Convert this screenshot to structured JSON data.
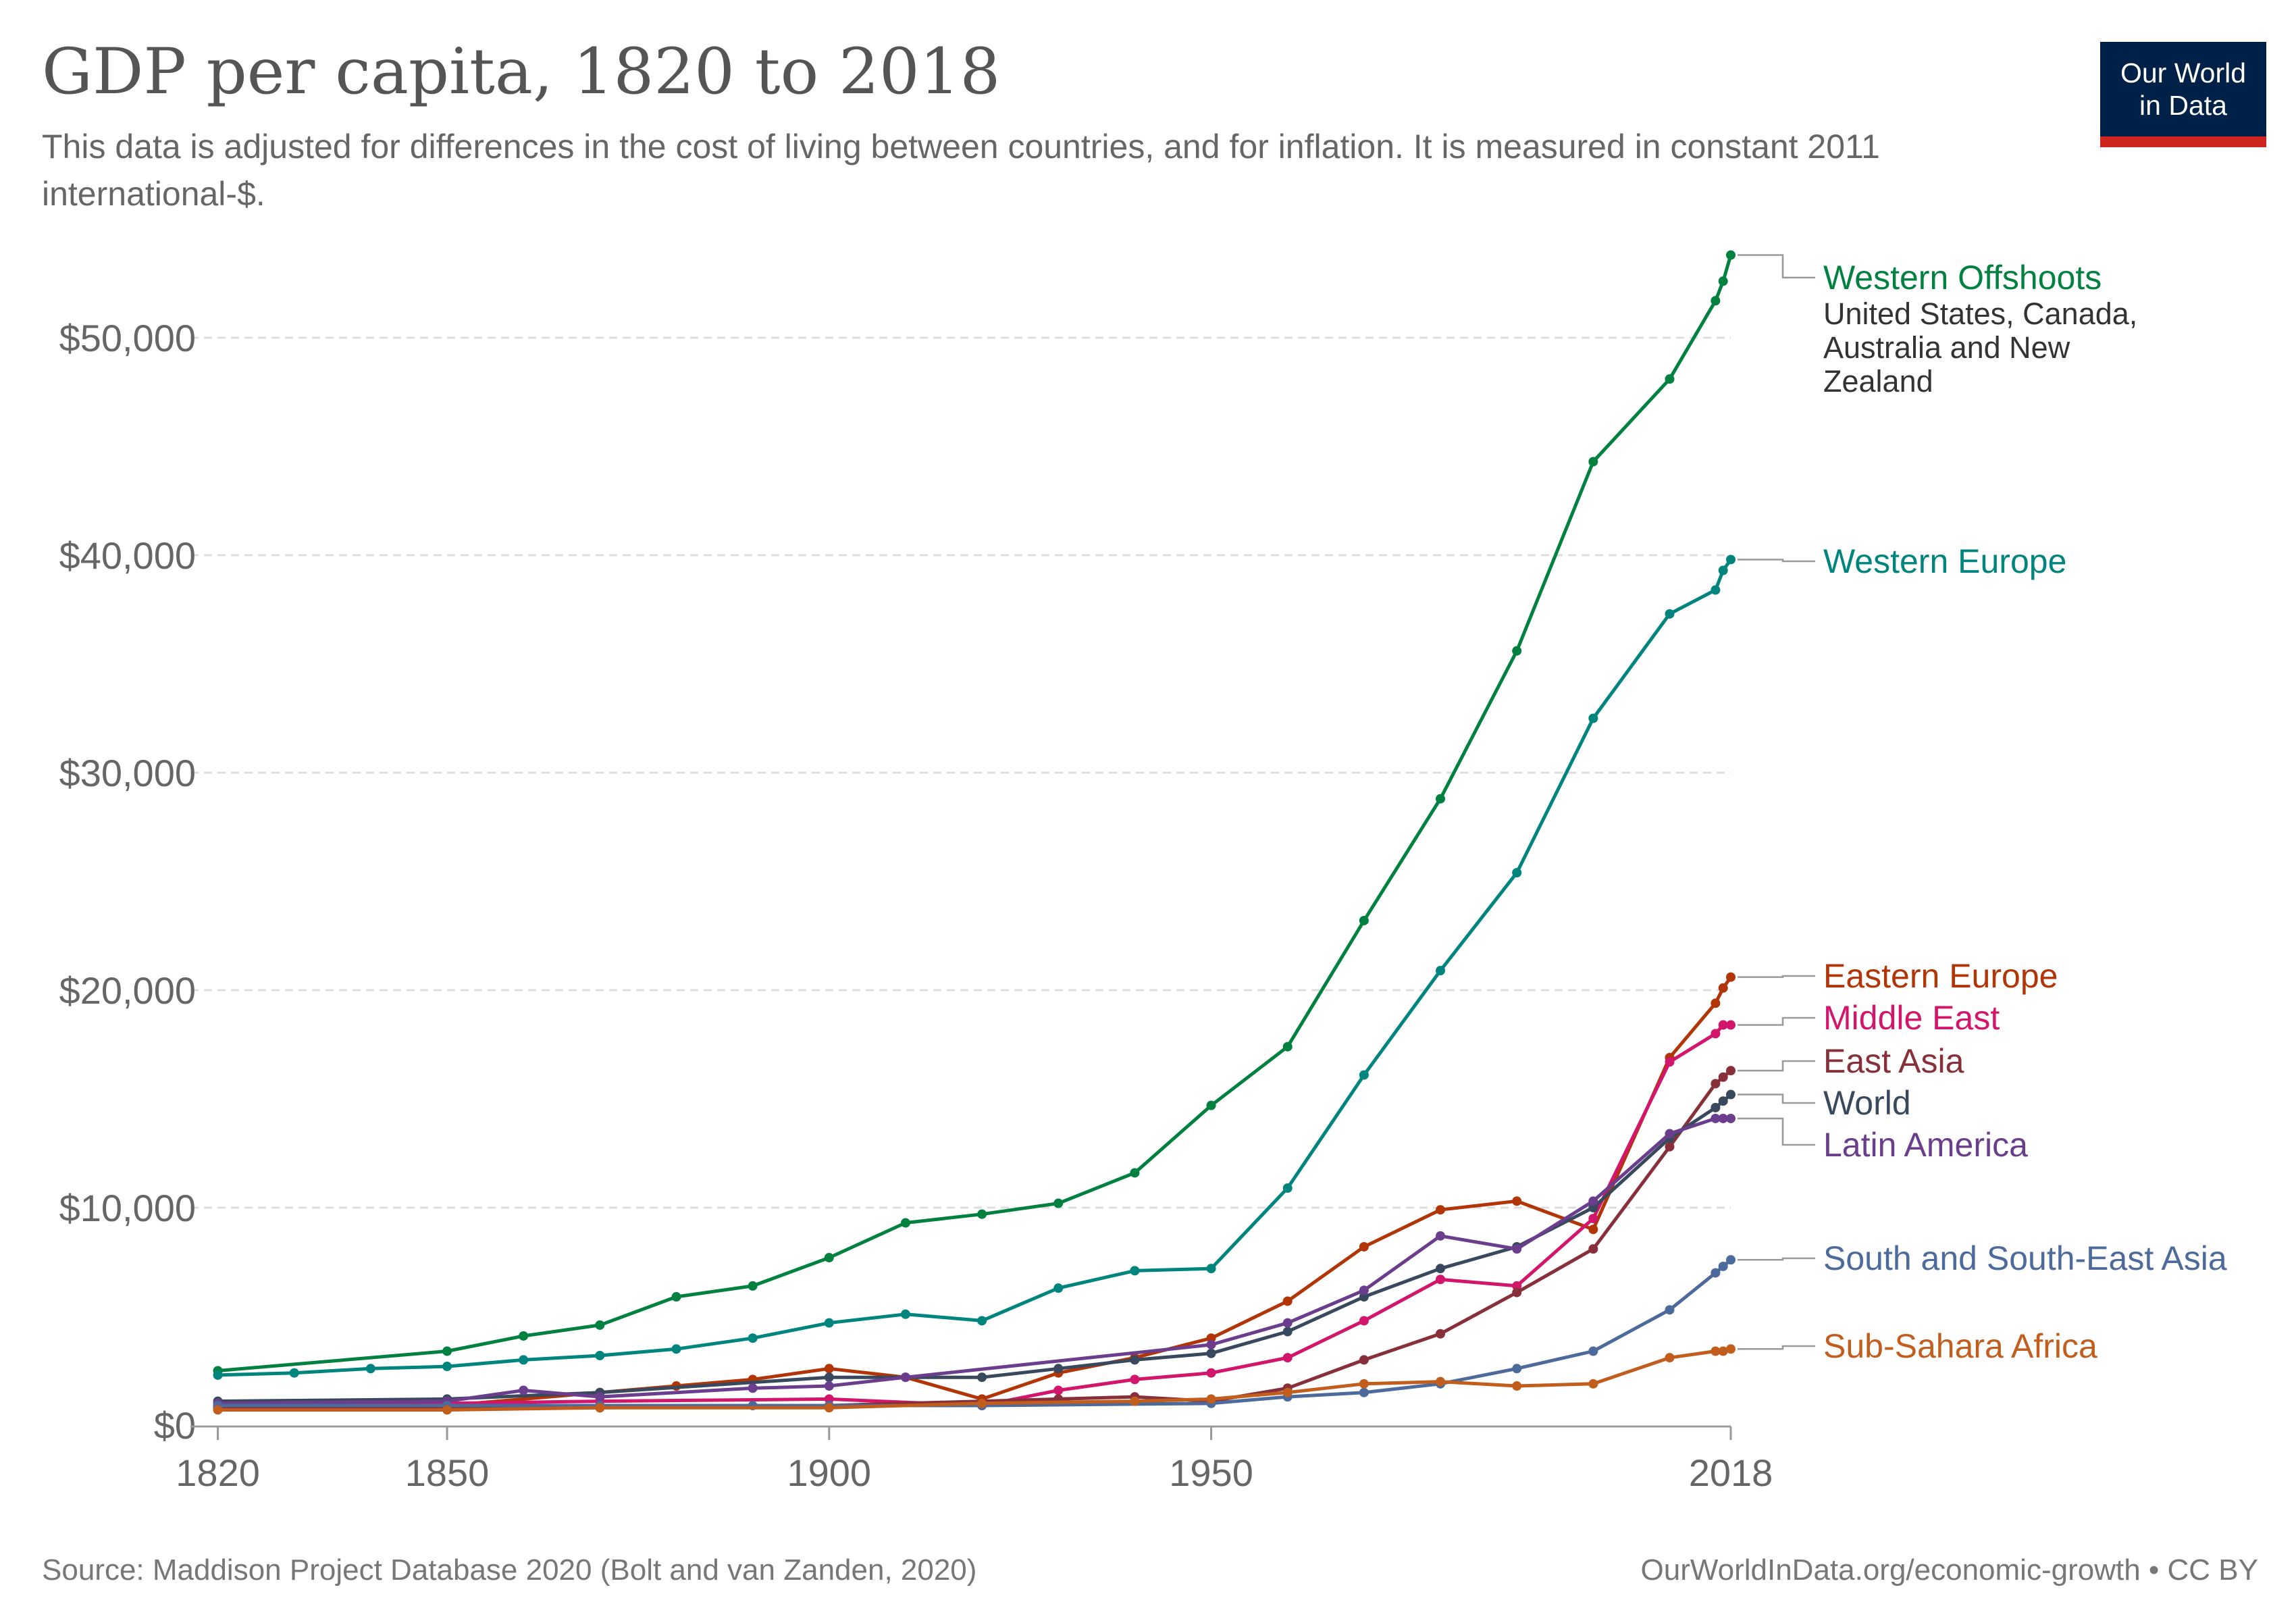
{
  "header": {
    "title": "GDP per capita, 1820 to 2018",
    "subtitle": "This data is adjusted for differences in the cost of living between countries, and for inflation. It is measured in constant 2011 international-$.",
    "logo_line1": "Our World",
    "logo_line2": "in Data"
  },
  "footer": {
    "source": "Source: Maddison Project Database 2020 (Bolt and van Zanden, 2020)",
    "license": "OurWorldInData.org/economic-growth • CC BY"
  },
  "chart_data": {
    "type": "line",
    "title": "GDP per capita, 1820 to 2018",
    "xlabel": "",
    "ylabel": "",
    "xlim": [
      1820,
      2018
    ],
    "ylim": [
      0,
      55000
    ],
    "y_ticks": [
      0,
      10000,
      20000,
      30000,
      40000,
      50000
    ],
    "y_tick_labels": [
      "$0",
      "$10,000",
      "$20,000",
      "$30,000",
      "$40,000",
      "$50,000"
    ],
    "x_ticks": [
      1820,
      1850,
      1900,
      1950,
      2018
    ],
    "x_tick_labels": [
      "1820",
      "1850",
      "1900",
      "1950",
      "2018"
    ],
    "grid": "horizontal dashed",
    "legend_placement": "right, labels at line ends",
    "series": [
      {
        "name": "Western Offshoots",
        "note": "United States, Canada, Australia and New Zealand",
        "color": "#00813f",
        "x": [
          1820,
          1850,
          1860,
          1870,
          1880,
          1890,
          1900,
          1910,
          1920,
          1930,
          1940,
          1950,
          1960,
          1970,
          1980,
          1990,
          2000,
          2010,
          2016,
          2017,
          2018
        ],
        "y": [
          2500,
          3400,
          4100,
          4600,
          5900,
          6400,
          7700,
          9300,
          9700,
          10200,
          11600,
          14700,
          17400,
          23200,
          28800,
          35600,
          44300,
          48100,
          51700,
          52600,
          53800
        ]
      },
      {
        "name": "Western Europe",
        "color": "#00847e",
        "x": [
          1820,
          1830,
          1840,
          1850,
          1860,
          1870,
          1880,
          1890,
          1900,
          1910,
          1920,
          1930,
          1940,
          1950,
          1960,
          1970,
          1980,
          1990,
          2000,
          2010,
          2016,
          2017,
          2018
        ],
        "y": [
          2300,
          2400,
          2600,
          2700,
          3000,
          3200,
          3500,
          4000,
          4700,
          5100,
          4800,
          6300,
          7100,
          7200,
          10900,
          16100,
          20900,
          25400,
          32500,
          37300,
          38400,
          39300,
          39800
        ]
      },
      {
        "name": "Eastern Europe",
        "color": "#b13507",
        "x": [
          1820,
          1850,
          1870,
          1880,
          1890,
          1900,
          1910,
          1920,
          1930,
          1940,
          1950,
          1960,
          1970,
          1980,
          1990,
          2000,
          2010,
          2016,
          2017,
          2018
        ],
        "y": [
          800,
          900,
          1500,
          1800,
          2100,
          2600,
          2200,
          1200,
          2400,
          3100,
          4000,
          5700,
          8200,
          9900,
          10300,
          9000,
          16900,
          19400,
          20100,
          20600
        ]
      },
      {
        "name": "Middle East",
        "color": "#d2166b",
        "x": [
          1820,
          1850,
          1870,
          1900,
          1920,
          1930,
          1940,
          1950,
          1960,
          1970,
          1980,
          1990,
          2000,
          2010,
          2016,
          2017,
          2018
        ],
        "y": [
          900,
          1000,
          1100,
          1200,
          900,
          1600,
          2100,
          2400,
          3100,
          4800,
          6700,
          6400,
          9500,
          16700,
          18000,
          18400,
          18400
        ]
      },
      {
        "name": "East Asia",
        "color": "#883039",
        "x": [
          1820,
          1850,
          1870,
          1900,
          1930,
          1940,
          1950,
          1960,
          1970,
          1980,
          1990,
          2000,
          2010,
          2016,
          2017,
          2018
        ],
        "y": [
          800,
          800,
          800,
          900,
          1200,
          1300,
          1100,
          1700,
          3000,
          4200,
          6100,
          8100,
          12800,
          15700,
          16000,
          16300
        ]
      },
      {
        "name": "World",
        "color": "#38495e",
        "x": [
          1820,
          1850,
          1870,
          1900,
          1920,
          1930,
          1940,
          1950,
          1960,
          1970,
          1980,
          1990,
          2000,
          2010,
          2016,
          2017,
          2018
        ],
        "y": [
          1100,
          1200,
          1500,
          2200,
          2200,
          2600,
          3000,
          3300,
          4300,
          5900,
          7200,
          8200,
          10000,
          13200,
          14600,
          14900,
          15200
        ]
      },
      {
        "name": "Latin America",
        "color": "#6b3d8d",
        "x": [
          1820,
          1850,
          1860,
          1870,
          1890,
          1900,
          1910,
          1950,
          1960,
          1970,
          1980,
          1990,
          2000,
          2010,
          2016,
          2017,
          2018
        ],
        "y": [
          1000,
          1100,
          1600,
          1300,
          1700,
          1800,
          2200,
          3700,
          4700,
          6200,
          8700,
          8100,
          10300,
          13400,
          14100,
          14100,
          14100
        ]
      },
      {
        "name": "South and South-East Asia",
        "color": "#4c6a9c",
        "x": [
          1820,
          1850,
          1870,
          1890,
          1900,
          1920,
          1950,
          1960,
          1970,
          1980,
          1990,
          2000,
          2010,
          2016,
          2017,
          2018
        ],
        "y": [
          900,
          900,
          900,
          900,
          900,
          900,
          1000,
          1300,
          1500,
          1900,
          2600,
          3400,
          5300,
          7000,
          7300,
          7600
        ]
      },
      {
        "name": "Sub-Sahara Africa",
        "color": "#c15e1e",
        "x": [
          1820,
          1850,
          1870,
          1900,
          1920,
          1940,
          1950,
          1960,
          1970,
          1980,
          1990,
          2000,
          2010,
          2016,
          2017,
          2018
        ],
        "y": [
          700,
          700,
          800,
          800,
          1000,
          1100,
          1200,
          1500,
          1900,
          2000,
          1800,
          1900,
          3100,
          3400,
          3400,
          3500
        ]
      }
    ]
  }
}
